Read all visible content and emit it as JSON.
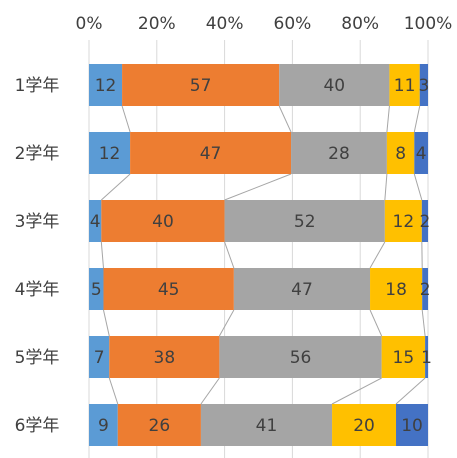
{
  "chart_data": {
    "type": "bar",
    "orientation": "horizontal",
    "stacked": "percent",
    "series_lines": true,
    "grid": true,
    "legend": "none",
    "xlim": [
      0,
      100
    ],
    "x_ticks": [
      "0%",
      "20%",
      "40%",
      "60%",
      "80%",
      "100%"
    ],
    "categories": [
      "1学年",
      "2学年",
      "3学年",
      "4学年",
      "5学年",
      "6学年"
    ],
    "series": [
      {
        "color": "#5B9BD5",
        "values": [
          12,
          12,
          4,
          5,
          7,
          9
        ]
      },
      {
        "color": "#ED7D31",
        "values": [
          57,
          47,
          40,
          45,
          38,
          26
        ]
      },
      {
        "color": "#A5A5A5",
        "values": [
          40,
          28,
          52,
          47,
          56,
          41
        ]
      },
      {
        "color": "#FFC000",
        "values": [
          11,
          8,
          12,
          18,
          15,
          20
        ]
      },
      {
        "color": "#4472C4",
        "values": [
          3,
          4,
          2,
          2,
          1,
          10
        ]
      }
    ]
  }
}
